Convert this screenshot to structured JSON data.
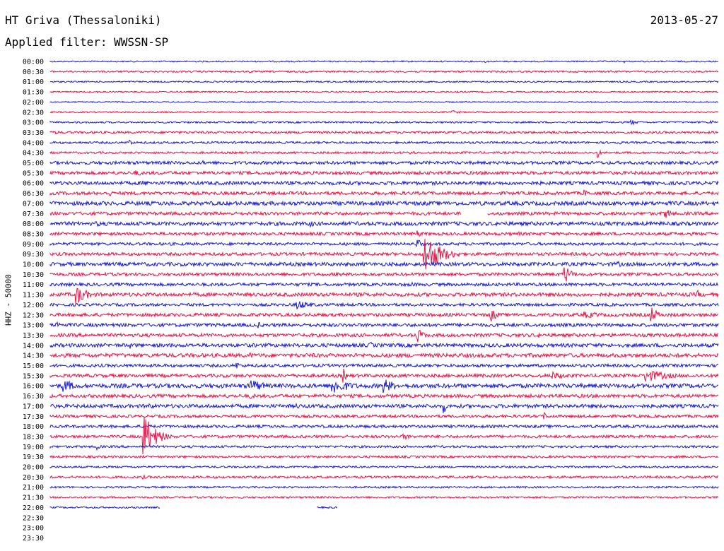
{
  "header": {
    "station": "HT Griva (Thessaloniki)",
    "date": "2013-05-27",
    "filter": "Applied filter: WWSSN-SP"
  },
  "axis": {
    "ylabel": "HHZ - 50000"
  },
  "colors": {
    "blue": "#1a1ad6",
    "red": "#ee1144"
  },
  "chart_data": {
    "type": "helicorder",
    "rows": [
      {
        "label": "00:00",
        "color": "blue",
        "start": 0.0,
        "end": 1.0,
        "noise": 1.0,
        "events": [
          {
            "pos": 0.65,
            "amp": 2,
            "dur": 0.03
          },
          {
            "pos": 0.86,
            "amp": 2,
            "dur": 0.01
          }
        ]
      },
      {
        "label": "00:30",
        "color": "red",
        "start": 0.0,
        "end": 1.0,
        "noise": 1.2,
        "events": [
          {
            "pos": 0.3,
            "amp": 2,
            "dur": 0.03
          },
          {
            "pos": 0.54,
            "amp": 2,
            "dur": 0.04
          },
          {
            "pos": 0.84,
            "amp": 2,
            "dur": 0.03
          }
        ]
      },
      {
        "label": "01:00",
        "color": "blue",
        "start": 0.0,
        "end": 1.0,
        "noise": 1.0,
        "events": [
          {
            "pos": 0.45,
            "amp": 2,
            "dur": 0.01
          }
        ]
      },
      {
        "label": "01:30",
        "color": "red",
        "start": 0.0,
        "end": 1.0,
        "noise": 1.0,
        "events": [
          {
            "pos": 0.07,
            "amp": 2,
            "dur": 0.02
          }
        ]
      },
      {
        "label": "02:00",
        "color": "blue",
        "start": 0.0,
        "end": 1.0,
        "noise": 0.8,
        "events": []
      },
      {
        "label": "02:30",
        "color": "red",
        "start": 0.0,
        "end": 1.0,
        "noise": 1.0,
        "events": [
          {
            "pos": 0.6,
            "amp": 3,
            "dur": 0.05
          }
        ]
      },
      {
        "label": "03:00",
        "color": "blue",
        "start": 0.0,
        "end": 1.0,
        "noise": 1.2,
        "events": [
          {
            "pos": 0.87,
            "amp": 4,
            "dur": 0.03
          },
          {
            "pos": 0.99,
            "amp": 4,
            "dur": 0.01
          }
        ]
      },
      {
        "label": "03:30",
        "color": "red",
        "start": 0.0,
        "end": 1.0,
        "noise": 1.6,
        "events": [
          {
            "pos": 0.01,
            "amp": 3,
            "dur": 0.02
          },
          {
            "pos": 0.75,
            "amp": 3,
            "dur": 0.02
          }
        ]
      },
      {
        "label": "04:00",
        "color": "blue",
        "start": 0.0,
        "end": 1.0,
        "noise": 1.5,
        "events": [
          {
            "pos": 0.12,
            "amp": 6,
            "dur": 0.01
          },
          {
            "pos": 0.85,
            "amp": 6,
            "dur": 0.01
          }
        ]
      },
      {
        "label": "04:30",
        "color": "red",
        "start": 0.0,
        "end": 1.0,
        "noise": 1.5,
        "events": [
          {
            "pos": 0.54,
            "amp": 4,
            "dur": 0.02
          },
          {
            "pos": 0.82,
            "amp": 8,
            "dur": 0.01
          }
        ]
      },
      {
        "label": "05:00",
        "color": "blue",
        "start": 0.0,
        "end": 1.0,
        "noise": 2.2,
        "events": [
          {
            "pos": 0.23,
            "amp": 3,
            "dur": 0.05
          }
        ]
      },
      {
        "label": "05:30",
        "color": "red",
        "start": 0.0,
        "end": 1.0,
        "noise": 2.3,
        "events": [
          {
            "pos": 0.13,
            "amp": 5,
            "dur": 0.03
          }
        ]
      },
      {
        "label": "06:00",
        "color": "blue",
        "start": 0.0,
        "end": 1.0,
        "noise": 2.5,
        "events": [
          {
            "pos": 0.14,
            "amp": 4,
            "dur": 0.06
          },
          {
            "pos": 0.27,
            "amp": 3,
            "dur": 0.05
          }
        ]
      },
      {
        "label": "06:30",
        "color": "red",
        "start": 0.0,
        "end": 1.0,
        "noise": 2.3,
        "events": [
          {
            "pos": 0.09,
            "amp": 5,
            "dur": 0.01
          },
          {
            "pos": 0.5,
            "amp": 3,
            "dur": 0.05
          },
          {
            "pos": 0.8,
            "amp": 5,
            "dur": 0.03
          }
        ]
      },
      {
        "label": "07:00",
        "color": "blue",
        "start": 0.0,
        "end": 1.0,
        "noise": 2.8,
        "events": [
          {
            "pos": 0.6,
            "amp": 5,
            "dur": 0.02
          }
        ]
      },
      {
        "label": "07:30",
        "color": "red",
        "start": 0.0,
        "end": 1.0,
        "noise": 2.3,
        "events": [
          {
            "pos": 0.4,
            "amp": 4,
            "dur": 0.04
          },
          {
            "pos": 0.92,
            "amp": 8,
            "dur": 0.04
          }
        ],
        "gap": [
          0.615,
          0.655
        ]
      },
      {
        "label": "08:00",
        "color": "blue",
        "start": 0.0,
        "end": 1.0,
        "noise": 2.7,
        "events": [
          {
            "pos": 0.07,
            "amp": 4,
            "dur": 0.08
          },
          {
            "pos": 0.39,
            "amp": 5,
            "dur": 0.03
          }
        ]
      },
      {
        "label": "08:30",
        "color": "red",
        "start": 0.0,
        "end": 1.0,
        "noise": 2.2,
        "events": [
          {
            "pos": 0.55,
            "amp": 6,
            "dur": 0.02
          },
          {
            "pos": 0.7,
            "amp": 4,
            "dur": 0.02
          }
        ]
      },
      {
        "label": "09:00",
        "color": "blue",
        "start": 0.0,
        "end": 1.0,
        "noise": 2.0,
        "events": [
          {
            "pos": 0.55,
            "amp": 8,
            "dur": 0.02
          }
        ]
      },
      {
        "label": "09:30",
        "color": "red",
        "start": 0.0,
        "end": 1.0,
        "noise": 2.2,
        "events": [
          {
            "pos": 0.56,
            "amp": 32,
            "dur": 0.07
          }
        ]
      },
      {
        "label": "10:00",
        "color": "blue",
        "start": 0.0,
        "end": 1.0,
        "noise": 2.6,
        "events": [
          {
            "pos": 0.85,
            "amp": 4,
            "dur": 0.06
          }
        ]
      },
      {
        "label": "10:30",
        "color": "red",
        "start": 0.0,
        "end": 1.0,
        "noise": 2.2,
        "events": [
          {
            "pos": 0.77,
            "amp": 14,
            "dur": 0.03
          },
          {
            "pos": 0.43,
            "amp": 4,
            "dur": 0.03
          }
        ]
      },
      {
        "label": "11:00",
        "color": "blue",
        "start": 0.0,
        "end": 1.0,
        "noise": 2.2,
        "events": [
          {
            "pos": 0.54,
            "amp": 4,
            "dur": 0.04
          }
        ]
      },
      {
        "label": "11:30",
        "color": "red",
        "start": 0.0,
        "end": 1.0,
        "noise": 2.6,
        "events": [
          {
            "pos": 0.04,
            "amp": 14,
            "dur": 0.05
          },
          {
            "pos": 0.97,
            "amp": 6,
            "dur": 0.02
          }
        ]
      },
      {
        "label": "12:00",
        "color": "blue",
        "start": 0.0,
        "end": 1.0,
        "noise": 2.0,
        "events": [
          {
            "pos": 0.37,
            "amp": 7,
            "dur": 0.07
          }
        ]
      },
      {
        "label": "12:30",
        "color": "red",
        "start": 0.0,
        "end": 1.0,
        "noise": 2.4,
        "events": [
          {
            "pos": 0.66,
            "amp": 10,
            "dur": 0.03
          },
          {
            "pos": 0.8,
            "amp": 5,
            "dur": 0.12
          },
          {
            "pos": 0.9,
            "amp": 12,
            "dur": 0.03
          }
        ]
      },
      {
        "label": "13:00",
        "color": "blue",
        "start": 0.0,
        "end": 1.0,
        "noise": 2.4,
        "events": [
          {
            "pos": 0.01,
            "amp": 6,
            "dur": 0.02
          },
          {
            "pos": 0.31,
            "amp": 6,
            "dur": 0.02
          }
        ]
      },
      {
        "label": "13:30",
        "color": "red",
        "start": 0.0,
        "end": 1.0,
        "noise": 2.4,
        "events": [
          {
            "pos": 0.55,
            "amp": 11,
            "dur": 0.03
          },
          {
            "pos": 0.73,
            "amp": 4,
            "dur": 0.03
          }
        ]
      },
      {
        "label": "14:00",
        "color": "blue",
        "start": 0.0,
        "end": 1.0,
        "noise": 2.6,
        "events": [
          {
            "pos": 0.12,
            "amp": 5,
            "dur": 0.01
          },
          {
            "pos": 0.48,
            "amp": 5,
            "dur": 0.02
          }
        ]
      },
      {
        "label": "14:30",
        "color": "red",
        "start": 0.0,
        "end": 1.0,
        "noise": 2.8,
        "events": [
          {
            "pos": 0.16,
            "amp": 4,
            "dur": 0.04
          },
          {
            "pos": 0.3,
            "amp": 4,
            "dur": 0.03
          }
        ]
      },
      {
        "label": "15:00",
        "color": "blue",
        "start": 0.0,
        "end": 1.0,
        "noise": 2.2,
        "events": [
          {
            "pos": 0.28,
            "amp": 6,
            "dur": 0.01
          }
        ]
      },
      {
        "label": "15:30",
        "color": "red",
        "start": 0.0,
        "end": 1.0,
        "noise": 2.4,
        "events": [
          {
            "pos": 0.44,
            "amp": 10,
            "dur": 0.01
          },
          {
            "pos": 0.75,
            "amp": 6,
            "dur": 0.1
          },
          {
            "pos": 0.89,
            "amp": 10,
            "dur": 0.11
          }
        ]
      },
      {
        "label": "16:00",
        "color": "blue",
        "start": 0.0,
        "end": 1.0,
        "noise": 3.0,
        "events": [
          {
            "pos": 0.02,
            "amp": 10,
            "dur": 0.06
          },
          {
            "pos": 0.3,
            "amp": 11,
            "dur": 0.06
          },
          {
            "pos": 0.42,
            "amp": 14,
            "dur": 0.08
          },
          {
            "pos": 0.5,
            "amp": 11,
            "dur": 0.05
          }
        ]
      },
      {
        "label": "16:30",
        "color": "red",
        "start": 0.0,
        "end": 1.0,
        "noise": 2.4,
        "events": [
          {
            "pos": 0.3,
            "amp": 4,
            "dur": 0.06
          }
        ]
      },
      {
        "label": "17:00",
        "color": "blue",
        "start": 0.0,
        "end": 1.0,
        "noise": 2.6,
        "events": [
          {
            "pos": 0.15,
            "amp": 5,
            "dur": 0.02
          },
          {
            "pos": 0.37,
            "amp": 4,
            "dur": 0.06
          },
          {
            "pos": 0.59,
            "amp": 10,
            "dur": 0.01
          }
        ]
      },
      {
        "label": "17:30",
        "color": "red",
        "start": 0.0,
        "end": 1.0,
        "noise": 2.0,
        "events": [
          {
            "pos": 0.31,
            "amp": 4,
            "dur": 0.02
          },
          {
            "pos": 0.74,
            "amp": 6,
            "dur": 0.01
          }
        ]
      },
      {
        "label": "18:00",
        "color": "blue",
        "start": 0.0,
        "end": 1.0,
        "noise": 2.0,
        "events": []
      },
      {
        "label": "18:30",
        "color": "red",
        "start": 0.0,
        "end": 1.0,
        "noise": 2.0,
        "events": [
          {
            "pos": 0.14,
            "amp": 34,
            "dur": 0.05
          },
          {
            "pos": 0.53,
            "amp": 5,
            "dur": 0.03
          }
        ]
      },
      {
        "label": "19:00",
        "color": "blue",
        "start": 0.0,
        "end": 1.0,
        "noise": 1.6,
        "events": [
          {
            "pos": 0.07,
            "amp": 5,
            "dur": 0.02
          }
        ]
      },
      {
        "label": "19:30",
        "color": "red",
        "start": 0.0,
        "end": 1.0,
        "noise": 1.6,
        "events": []
      },
      {
        "label": "20:00",
        "color": "blue",
        "start": 0.0,
        "end": 1.0,
        "noise": 1.4,
        "events": []
      },
      {
        "label": "20:30",
        "color": "red",
        "start": 0.0,
        "end": 1.0,
        "noise": 1.6,
        "events": [
          {
            "pos": 0.14,
            "amp": 3,
            "dur": 0.02
          }
        ]
      },
      {
        "label": "21:00",
        "color": "blue",
        "start": 0.0,
        "end": 1.0,
        "noise": 1.3,
        "events": []
      },
      {
        "label": "21:30",
        "color": "red",
        "start": 0.0,
        "end": 1.0,
        "noise": 1.3,
        "events": []
      },
      {
        "label": "22:00",
        "color": "blue",
        "start": 0.0,
        "end": 0.165,
        "noise": 1.2,
        "events": [],
        "extra": [
          0.4,
          0.43
        ]
      },
      {
        "label": "22:30",
        "color": "red",
        "start": 0,
        "end": 0,
        "noise": 0,
        "events": []
      },
      {
        "label": "23:00",
        "color": "blue",
        "start": 0,
        "end": 0,
        "noise": 0,
        "events": []
      },
      {
        "label": "23:30",
        "color": "red",
        "start": 0,
        "end": 0,
        "noise": 0,
        "events": []
      }
    ]
  }
}
